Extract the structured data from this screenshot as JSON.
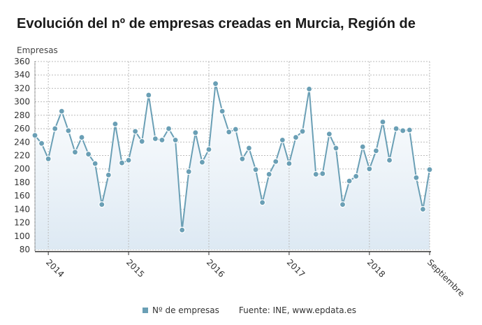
{
  "chart_data": {
    "type": "line",
    "title": "Evolución del nº de empresas creadas en Murcia, Región de",
    "ylabel": "Empresas",
    "ylim": [
      80,
      360
    ],
    "yticks": [
      80,
      100,
      120,
      140,
      160,
      180,
      200,
      220,
      240,
      260,
      280,
      300,
      320,
      340,
      360
    ],
    "x_ticks": [
      {
        "label": "2014",
        "index": 2
      },
      {
        "label": "2015",
        "index": 14
      },
      {
        "label": "2016",
        "index": 26
      },
      {
        "label": "2017",
        "index": 38
      },
      {
        "label": "2018",
        "index": 50
      },
      {
        "label": "Septiembre",
        "index": 59
      }
    ],
    "grid": true,
    "legend_position": "bottom",
    "series": [
      {
        "name": "Nº de empresas",
        "color": "#6a9fb5",
        "values": [
          250,
          238,
          215,
          260,
          286,
          257,
          225,
          247,
          222,
          208,
          147,
          191,
          267,
          209,
          213,
          256,
          241,
          310,
          245,
          243,
          260,
          243,
          109,
          196,
          254,
          210,
          229,
          327,
          286,
          255,
          259,
          215,
          231,
          199,
          150,
          192,
          211,
          243,
          208,
          247,
          256,
          319,
          192,
          193,
          252,
          231,
          147,
          182,
          189,
          233,
          200,
          227,
          270,
          213,
          260,
          257,
          258,
          187,
          140,
          199
        ]
      }
    ]
  },
  "source": "Fuente: INE, www.epdata.es"
}
